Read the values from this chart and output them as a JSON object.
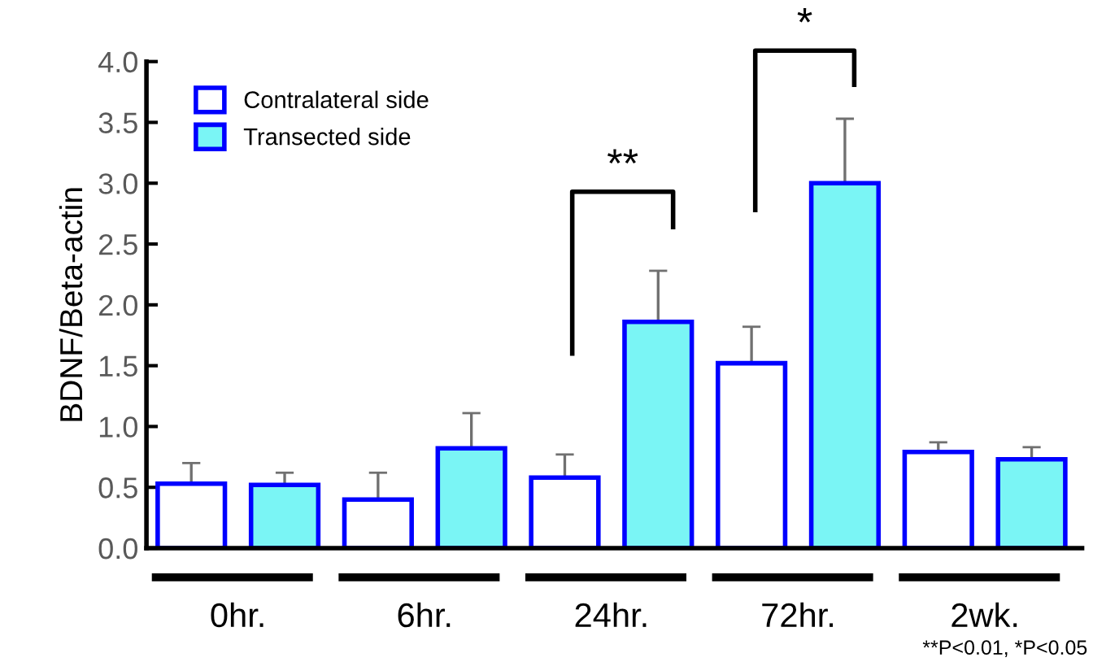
{
  "chart_data": {
    "type": "bar",
    "ylabel": "BDNF/Beta-actin",
    "categories": [
      "0hr.",
      "6hr.",
      "24hr.",
      "72hr.",
      "2wk."
    ],
    "series": [
      {
        "name": "Contralateral side",
        "color": "#ffffff",
        "values": [
          0.53,
          0.4,
          0.58,
          1.52,
          0.79
        ],
        "errors": [
          [
            0.53,
            0.7
          ],
          [
            0.4,
            0.62
          ],
          [
            0.58,
            0.77
          ],
          [
            1.52,
            1.82
          ],
          [
            0.79,
            0.87
          ]
        ]
      },
      {
        "name": "Transected side",
        "color": "#7af5f5",
        "values": [
          0.52,
          0.82,
          1.86,
          3.0,
          0.73
        ],
        "errors": [
          [
            0.52,
            0.62
          ],
          [
            0.82,
            1.11
          ],
          [
            1.86,
            2.28
          ],
          [
            3.0,
            3.53
          ],
          [
            0.73,
            0.83
          ]
        ]
      }
    ],
    "ylim": [
      0,
      4.0
    ],
    "yticks": [
      {
        "value": 0,
        "label": "0.0"
      },
      {
        "value": 0.5,
        "label": "0.5"
      },
      {
        "value": 1.0,
        "label": "1.0"
      },
      {
        "value": 1.5,
        "label": "1.5"
      },
      {
        "value": 2.0,
        "label": "2.0"
      },
      {
        "value": 2.5,
        "label": "2.5"
      },
      {
        "value": 3.0,
        "label": "3.0"
      },
      {
        "value": 3.5,
        "label": "3.5"
      },
      {
        "value": 4.0,
        "label": "4.0"
      }
    ],
    "annotations": [
      "**",
      "*",
      "**P<0.01, *P<0.05"
    ],
    "legend": "top left",
    "grid": false
  }
}
